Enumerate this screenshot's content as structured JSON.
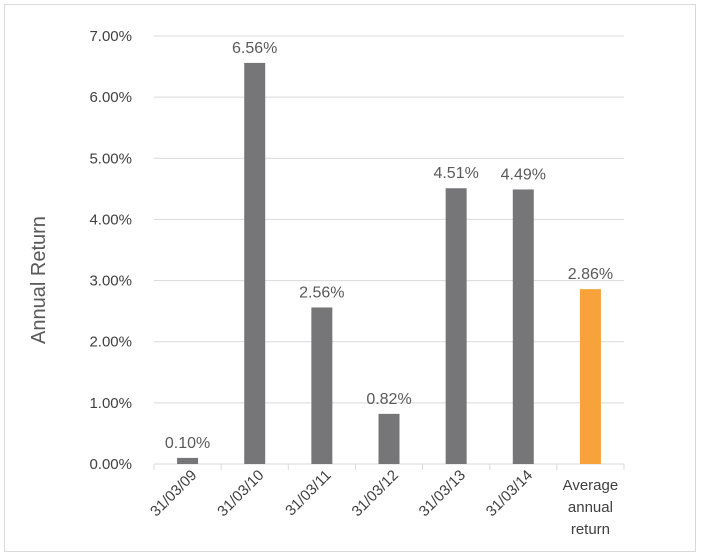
{
  "chart_data": {
    "type": "bar",
    "title": "",
    "xlabel": "",
    "ylabel": "Annual Return",
    "ylim": [
      0,
      7
    ],
    "yticks": [
      "0.00%",
      "1.00%",
      "2.00%",
      "3.00%",
      "4.00%",
      "5.00%",
      "6.00%",
      "7.00%"
    ],
    "grid": true,
    "legend": "none",
    "categories": [
      "31/03/09",
      "31/03/10",
      "31/03/11",
      "31/03/12",
      "31/03/13",
      "31/03/14",
      "Average annual return"
    ],
    "values": [
      0.1,
      6.56,
      2.56,
      0.82,
      4.51,
      4.49,
      2.86
    ],
    "data_labels": [
      "0.10%",
      "6.56%",
      "2.56%",
      "0.82%",
      "4.51%",
      "4.49%",
      "2.86%"
    ],
    "colors": {
      "bar": "#767679",
      "highlight": "#f7a23b",
      "grid": "#d9d9d9"
    }
  }
}
